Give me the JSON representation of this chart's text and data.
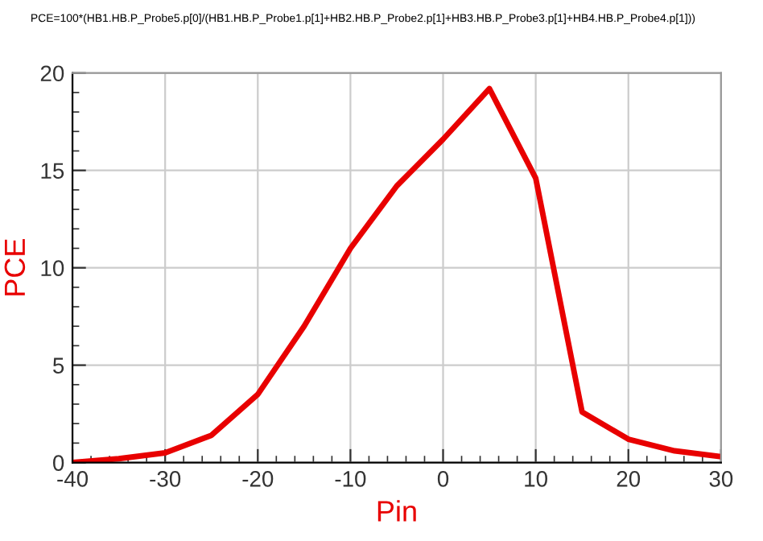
{
  "chart_data": {
    "type": "line",
    "xlabel": "Pin",
    "ylabel": "PCE",
    "annotations": [
      "PCE=100*(HB1.HB.P_Probe5.p[0]/(HB1.HB.P_Probe1.p[1]+HB2.HB.P_Probe2.p[1]+HB3.HB.P_Probe3.p[1]+HB4.HB.P_Probe4.p[1]))"
    ],
    "x": [
      -40,
      -35,
      -30,
      -25,
      -20,
      -15,
      -10,
      -5,
      0,
      5,
      10,
      15,
      20,
      25,
      30
    ],
    "series": [
      {
        "color": "#e80000",
        "values": [
          0,
          0.2,
          0.5,
          1.4,
          3.5,
          7.0,
          11.0,
          14.2,
          16.6,
          19.2,
          14.6,
          2.6,
          1.2,
          0.6,
          0.3
        ]
      }
    ],
    "xlim": [
      -40,
      30
    ],
    "xticks": [
      -40,
      -30,
      -20,
      -10,
      0,
      10,
      20,
      30
    ],
    "ylim": [
      0,
      20
    ],
    "yticks": [
      0,
      5,
      10,
      15,
      20
    ],
    "grid": true,
    "marker": "none",
    "line_style": "solid",
    "legend": false
  }
}
